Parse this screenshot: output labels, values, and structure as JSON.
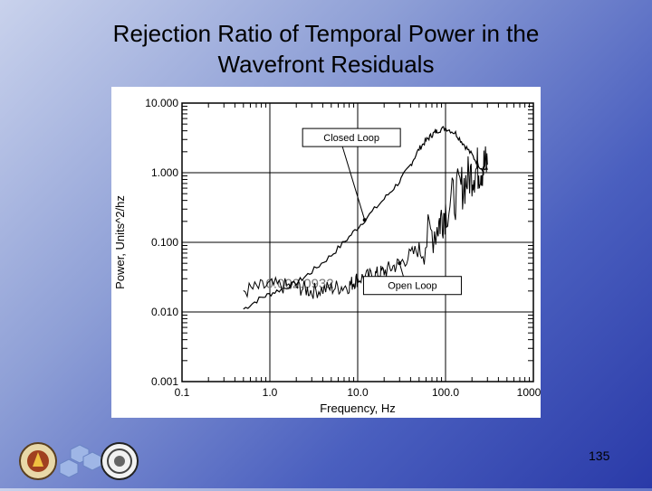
{
  "slide": {
    "title_line1": "Rejection Ratio of Temporal Power in the",
    "title_line2": "Wavefront Residuals",
    "page_number": "135"
  },
  "chart_data": {
    "type": "line",
    "xscale": "log",
    "yscale": "log",
    "xlim": [
      0.1,
      1000
    ],
    "ylim": [
      0.001,
      10
    ],
    "xlabel": "Frequency, Hz",
    "ylabel": "Power, Units^2/hz",
    "x_ticks": [
      "0.1",
      "1.0",
      "10.0",
      "100.0",
      "1000.0"
    ],
    "y_ticks": [
      "10.000",
      "1.000",
      "0.100",
      "0.010",
      "0.001"
    ],
    "plot_annotation": "0.002.0932",
    "series": [
      {
        "name": "Closed Loop",
        "x": [
          0.5,
          0.8,
          1.2,
          2,
          3,
          5,
          8,
          12,
          20,
          30,
          40,
          50,
          60,
          70,
          80,
          100,
          130,
          160,
          200,
          250,
          300
        ],
        "y": [
          0.011,
          0.016,
          0.02,
          0.026,
          0.038,
          0.065,
          0.12,
          0.21,
          0.42,
          0.75,
          1.3,
          2.2,
          2.9,
          3.5,
          4.0,
          4.4,
          3.7,
          2.6,
          1.8,
          1.2,
          1.1
        ]
      },
      {
        "name": "Open Loop",
        "x": [
          0.5,
          1,
          2,
          3,
          5,
          8,
          10,
          15,
          20,
          30,
          50,
          80,
          100,
          150,
          200,
          250,
          300
        ],
        "y": [
          0.02,
          0.024,
          0.023,
          0.02,
          0.022,
          0.024,
          0.03,
          0.033,
          0.038,
          0.05,
          0.08,
          0.17,
          0.3,
          0.6,
          1.0,
          1.2,
          1.3
        ]
      }
    ],
    "annotations": [
      {
        "text": "Closed Loop",
        "target": [
          12,
          0.21
        ]
      },
      {
        "text": "Open Loop",
        "target": [
          30,
          0.05
        ]
      }
    ],
    "grid": false,
    "legend": "none"
  }
}
